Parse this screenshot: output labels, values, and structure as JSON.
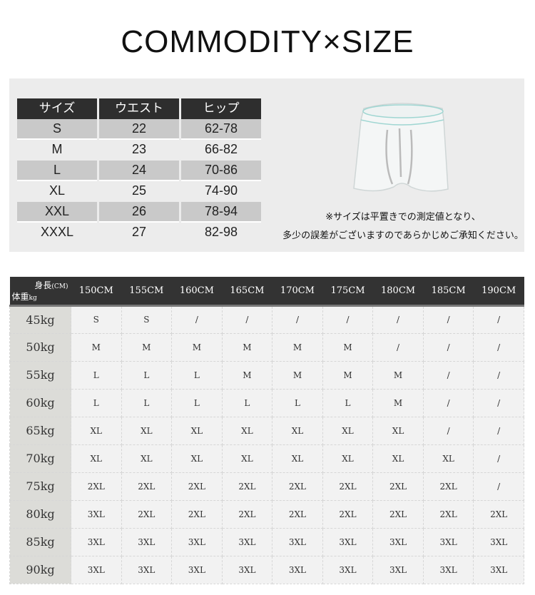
{
  "title": "COMMODITY×SIZE",
  "size_table": {
    "headers": [
      "サイズ",
      "ウエスト",
      "ヒップ"
    ],
    "rows": [
      [
        "S",
        "22",
        "62-78"
      ],
      [
        "M",
        "23",
        "66-82"
      ],
      [
        "L",
        "24",
        "70-86"
      ],
      [
        "XL",
        "25",
        "74-90"
      ],
      [
        "XXL",
        "26",
        "78-94"
      ],
      [
        "XXXL",
        "27",
        "82-98"
      ]
    ]
  },
  "note": [
    "※サイズは平置きでの測定値となり、",
    "多少の誤差がございますのであらかじめご承知ください。"
  ],
  "chart": {
    "corner_height": "身長",
    "corner_height_unit": "(CM)",
    "corner_weight": "体重",
    "corner_weight_unit": "kg",
    "heights": [
      "150CM",
      "155CM",
      "160CM",
      "165CM",
      "170CM",
      "175CM",
      "180CM",
      "185CM",
      "190CM"
    ],
    "rows": [
      {
        "weight": "45kg",
        "sizes": [
          "S",
          "S",
          "/",
          "/",
          "/",
          "/",
          "/",
          "/",
          "/"
        ]
      },
      {
        "weight": "50kg",
        "sizes": [
          "M",
          "M",
          "M",
          "M",
          "M",
          "M",
          "/",
          "/",
          "/"
        ]
      },
      {
        "weight": "55kg",
        "sizes": [
          "L",
          "L",
          "L",
          "M",
          "M",
          "M",
          "M",
          "/",
          "/"
        ]
      },
      {
        "weight": "60kg",
        "sizes": [
          "L",
          "L",
          "L",
          "L",
          "L",
          "L",
          "M",
          "/",
          "/"
        ]
      },
      {
        "weight": "65kg",
        "sizes": [
          "XL",
          "XL",
          "XL",
          "XL",
          "XL",
          "XL",
          "XL",
          "/",
          "/"
        ]
      },
      {
        "weight": "70kg",
        "sizes": [
          "XL",
          "XL",
          "XL",
          "XL",
          "XL",
          "XL",
          "XL",
          "XL",
          "/"
        ]
      },
      {
        "weight": "75kg",
        "sizes": [
          "2XL",
          "2XL",
          "2XL",
          "2XL",
          "2XL",
          "2XL",
          "2XL",
          "2XL",
          "/"
        ]
      },
      {
        "weight": "80kg",
        "sizes": [
          "3XL",
          "2XL",
          "2XL",
          "2XL",
          "2XL",
          "2XL",
          "2XL",
          "2XL",
          "2XL"
        ]
      },
      {
        "weight": "85kg",
        "sizes": [
          "3XL",
          "3XL",
          "3XL",
          "3XL",
          "3XL",
          "3XL",
          "3XL",
          "3XL",
          "3XL"
        ]
      },
      {
        "weight": "90kg",
        "sizes": [
          "3XL",
          "3XL",
          "3XL",
          "3XL",
          "3XL",
          "3XL",
          "3XL",
          "3XL",
          "3XL"
        ]
      }
    ]
  }
}
